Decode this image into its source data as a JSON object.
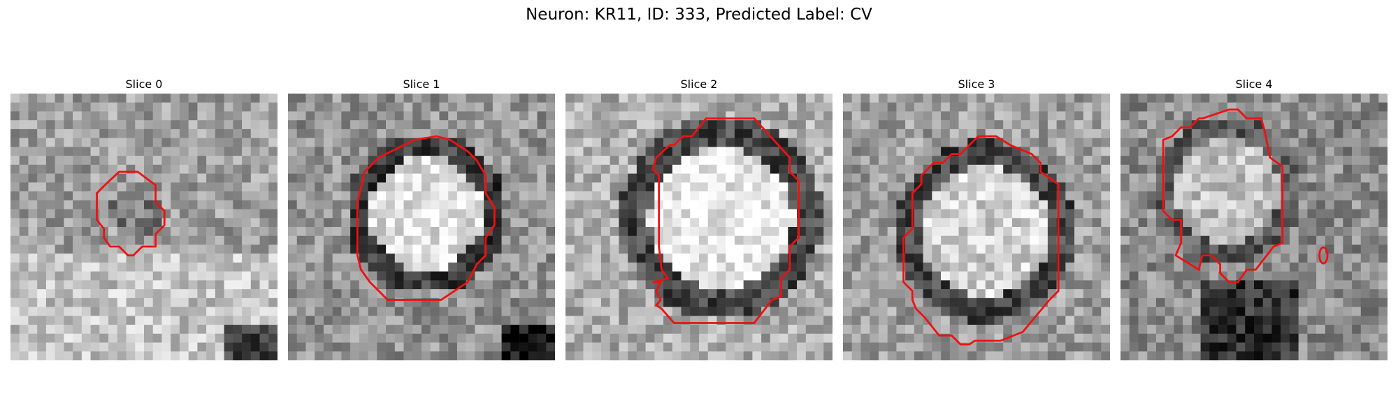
{
  "figure": {
    "title": "Neuron: KR11, ID: 333, Predicted Label: CV",
    "contour_color": "#ee1111"
  },
  "slices": [
    {
      "label": "Slice 0",
      "seed": 3,
      "base": 0.62,
      "ring": 0.0,
      "core": -0.15
    },
    {
      "label": "Slice 1",
      "seed": 7,
      "base": 0.58,
      "ring": -0.35,
      "core": 0.3
    },
    {
      "label": "Slice 2",
      "seed": 11,
      "base": 0.68,
      "ring": -0.4,
      "core": 0.25
    },
    {
      "label": "Slice 3",
      "seed": 19,
      "base": 0.62,
      "ring": -0.35,
      "core": 0.2
    },
    {
      "label": "Slice 4",
      "seed": 23,
      "base": 0.55,
      "ring": -0.2,
      "core": 0.2
    }
  ]
}
